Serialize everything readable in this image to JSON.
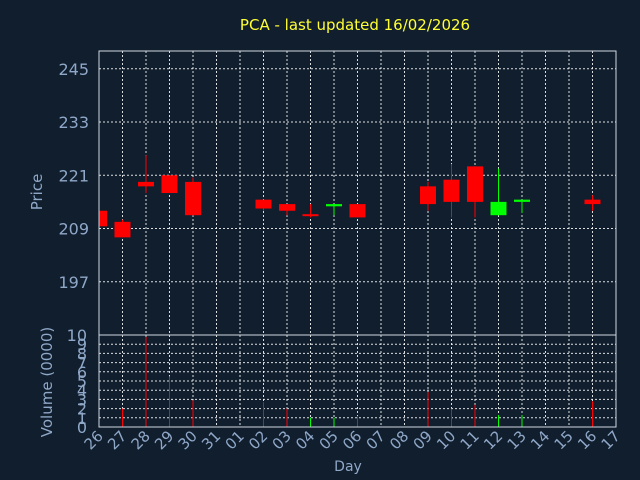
{
  "chart_data": {
    "type": "candlestick",
    "title": "PCA - last updated 16/02/2026",
    "price_panel": {
      "ylabel": "Price",
      "ylim": [
        185,
        249
      ],
      "yticks": [
        197,
        209,
        221,
        233,
        245
      ]
    },
    "volume_panel": {
      "ylabel": "Volume (0000)",
      "ylim": [
        0,
        10
      ],
      "yticks": [
        0,
        1,
        2,
        3,
        4,
        5,
        6,
        7,
        8,
        9,
        10
      ]
    },
    "xlabel": "Day",
    "x_ticks": [
      "26",
      "27",
      "28",
      "29",
      "30",
      "31",
      "01",
      "02",
      "03",
      "04",
      "05",
      "06",
      "07",
      "08",
      "09",
      "10",
      "11",
      "12",
      "13",
      "14",
      "15",
      "16",
      "17"
    ],
    "grid": true,
    "colors": {
      "background": "#111e2e",
      "up": "#00ff00",
      "down": "#ff0000",
      "title": "#ffff33",
      "axis_text": "#8fa8c8",
      "grid": "#ffffff"
    },
    "candles": [
      {
        "day": "26",
        "open": 213.0,
        "close": 209.5,
        "high": 213.0,
        "low": 209.0
      },
      {
        "day": "27",
        "open": 210.5,
        "close": 207.0,
        "high": 211.0,
        "low": 207.0
      },
      {
        "day": "28",
        "open": 219.5,
        "close": 218.5,
        "high": 225.5,
        "low": 217.0
      },
      {
        "day": "29",
        "open": 221.0,
        "close": 217.0,
        "high": 221.0,
        "low": 217.0
      },
      {
        "day": "30",
        "open": 219.5,
        "close": 212.0,
        "high": 220.5,
        "low": 212.0
      },
      {
        "day": "02",
        "open": 215.5,
        "close": 213.5,
        "high": 215.5,
        "low": 213.0
      },
      {
        "day": "03",
        "open": 214.5,
        "close": 213.0,
        "high": 214.5,
        "low": 212.0
      },
      {
        "day": "04",
        "open": 212.0,
        "close": 212.0,
        "high": 214.5,
        "low": 211.5
      },
      {
        "day": "05",
        "open": 214.0,
        "close": 214.5,
        "high": 214.5,
        "low": 212.0
      },
      {
        "day": "06",
        "open": 214.5,
        "close": 211.5,
        "high": 214.5,
        "low": 211.5
      },
      {
        "day": "09",
        "open": 218.5,
        "close": 214.5,
        "high": 219.5,
        "low": 213.0
      },
      {
        "day": "10",
        "open": 220.0,
        "close": 215.0,
        "high": 223.5,
        "low": 211.5
      },
      {
        "day": "11",
        "open": 223.0,
        "close": 215.0,
        "high": 223.0,
        "low": 211.5
      },
      {
        "day": "12",
        "open": 212.0,
        "close": 215.0,
        "high": 222.5,
        "low": 212.0
      },
      {
        "day": "13",
        "open": 215.0,
        "close": 215.5,
        "high": 215.5,
        "low": 212.5
      },
      {
        "day": "16",
        "open": 215.5,
        "close": 214.5,
        "high": 216.5,
        "low": 213.0
      }
    ],
    "volume": [
      {
        "day": "26",
        "value": 0.5,
        "color": "down"
      },
      {
        "day": "27",
        "value": 2.0,
        "color": "down"
      },
      {
        "day": "28",
        "value": 9.8,
        "color": "down"
      },
      {
        "day": "29",
        "value": 5.5,
        "color": "down"
      },
      {
        "day": "30",
        "value": 2.9,
        "color": "down"
      },
      {
        "day": "02",
        "value": 2.7,
        "color": "down"
      },
      {
        "day": "03",
        "value": 2.0,
        "color": "down"
      },
      {
        "day": "04",
        "value": 1.0,
        "color": "up"
      },
      {
        "day": "05",
        "value": 1.0,
        "color": "up"
      },
      {
        "day": "06",
        "value": 1.2,
        "color": "down"
      },
      {
        "day": "09",
        "value": 3.8,
        "color": "down"
      },
      {
        "day": "10",
        "value": 2.0,
        "color": "down"
      },
      {
        "day": "11",
        "value": 2.4,
        "color": "down"
      },
      {
        "day": "12",
        "value": 1.3,
        "color": "up"
      },
      {
        "day": "13",
        "value": 1.3,
        "color": "up"
      },
      {
        "day": "16",
        "value": 2.8,
        "color": "down"
      }
    ]
  }
}
